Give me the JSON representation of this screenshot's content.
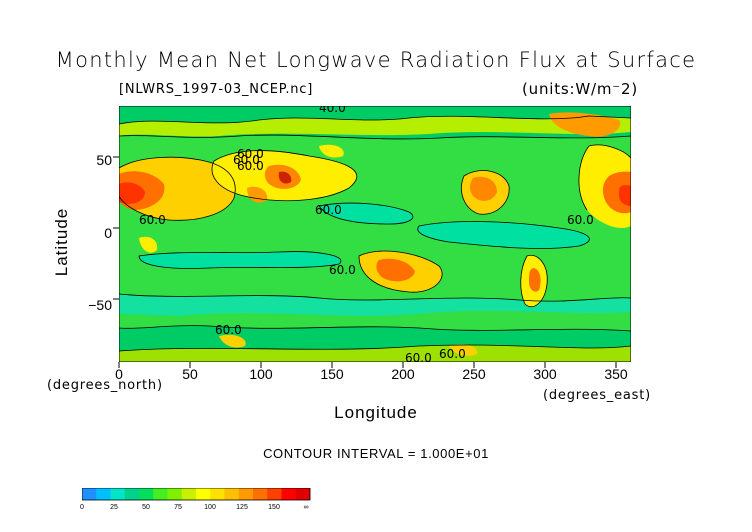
{
  "title": "Monthly Mean Net Longwave Radiation Flux at Surface",
  "file_label": "[NLWRS_1997-03_NCEP.nc]",
  "units_label": "(units:W/m⁻2)",
  "y_axis": {
    "label": "Latitude",
    "unit_label": "(degrees_north)",
    "ticks": [
      "50",
      "0",
      "−50"
    ]
  },
  "x_axis": {
    "label": "Longitude",
    "unit_label": "(degrees_east)",
    "ticks": [
      "0",
      "50",
      "100",
      "150",
      "200",
      "250",
      "300",
      "350"
    ]
  },
  "contour_interval": "CONTOUR INTERVAL = 1.000E+01",
  "contour_labels": [
    "40.0",
    "60.0",
    "60.0",
    "60.0",
    "60.0",
    "60.0",
    "60.0",
    "60.0",
    "60.0",
    "60.0",
    "60.0"
  ],
  "colorbar": {
    "ticks": [
      "0",
      "25",
      "50",
      "75",
      "100",
      "125",
      "150",
      "∞"
    ],
    "colors": [
      "#1e90ff",
      "#00bfff",
      "#00e5c8",
      "#00d28c",
      "#00e05a",
      "#44ee22",
      "#7ff000",
      "#c8f000",
      "#ffff00",
      "#ffe000",
      "#ffc000",
      "#ff9a00",
      "#ff7000",
      "#ff4000",
      "#ff0000",
      "#e00000"
    ]
  },
  "chart_data": {
    "type": "heatmap",
    "title": "Monthly Mean Net Longwave Radiation Flux at Surface",
    "xlabel": "Longitude",
    "ylabel": "Latitude",
    "xlim": [
      0,
      360
    ],
    "ylim": [
      -90,
      90
    ],
    "x_ticks": [
      0,
      50,
      100,
      150,
      200,
      250,
      300,
      350
    ],
    "y_ticks": [
      -50,
      0,
      50
    ],
    "value_range": [
      0,
      175
    ],
    "contour_interval": 10,
    "grid": false,
    "legend": "bottom-left colorbar"
  }
}
